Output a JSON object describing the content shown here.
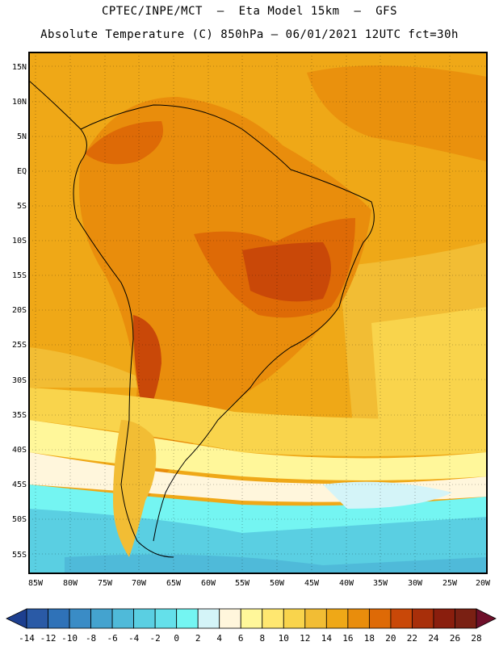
{
  "header": {
    "line1": "CPTEC/INPE/MCT  –  Eta Model 15km  –  GFS",
    "line2": "Absolute Temperature (C) 850hPa – 06/01/2021 12UTC fct=30h"
  },
  "map": {
    "lat_labels": [
      "15N",
      "10N",
      "5N",
      "EQ",
      "5S",
      "10S",
      "15S",
      "20S",
      "25S",
      "30S",
      "35S",
      "40S",
      "45S",
      "50S",
      "55S"
    ],
    "lon_labels": [
      "85W",
      "80W",
      "75W",
      "70W",
      "65W",
      "60W",
      "55W",
      "50W",
      "45W",
      "40W",
      "35W",
      "30W",
      "25W",
      "20W"
    ]
  },
  "colorbar": {
    "labels": [
      "-14",
      "-12",
      "-10",
      "-8",
      "-6",
      "-4",
      "-2",
      "0",
      "2",
      "4",
      "6",
      "8",
      "10",
      "12",
      "14",
      "16",
      "18",
      "20",
      "22",
      "24",
      "26",
      "28"
    ],
    "colors": [
      "#1d3f8f",
      "#2a5aa6",
      "#2f72b8",
      "#3a8cc6",
      "#44a3cf",
      "#4fbad9",
      "#5acfe2",
      "#64e0ea",
      "#74f5f2",
      "#d4f4f8",
      "#fff6dc",
      "#fff79a",
      "#ffe770",
      "#f9d44c",
      "#f2bd34",
      "#efa817",
      "#e98d0c",
      "#de6a06",
      "#c94808",
      "#a82f0a",
      "#8a1e0d",
      "#7a2013",
      "#6e0f2a"
    ]
  }
}
